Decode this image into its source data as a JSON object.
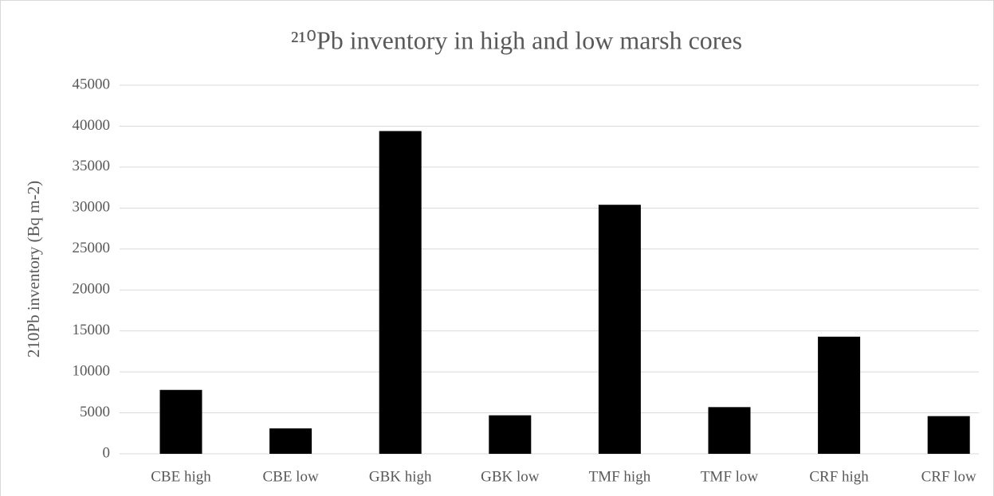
{
  "chart_data": {
    "type": "bar",
    "title": "²¹⁰Pb inventory in high and low marsh cores",
    "y_label": "210Pb inventory (Bq m-2)",
    "categories": [
      "CBE high",
      "CBE low",
      "GBK high",
      "GBK low",
      "TMF high",
      "TMF low",
      "CRF high",
      "CRF low"
    ],
    "values": [
      7800,
      3100,
      39400,
      4700,
      30400,
      5700,
      14300,
      4600
    ],
    "color": "#000000",
    "ylim": [
      0,
      45000
    ],
    "yticks": [
      0,
      5000,
      10000,
      15000,
      20000,
      25000,
      30000,
      35000,
      40000,
      45000
    ],
    "grid": true
  }
}
